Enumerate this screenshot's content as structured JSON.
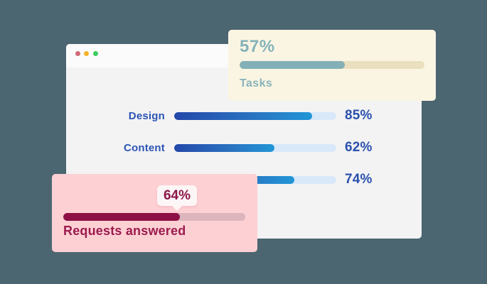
{
  "background_color": "#4c6671",
  "window": {
    "traffic_lights": [
      {
        "name": "close",
        "color": "#d16b76"
      },
      {
        "name": "minimize",
        "color": "#f6b42c"
      },
      {
        "name": "maximize",
        "color": "#3ecc5e"
      }
    ],
    "rows": [
      {
        "label": "Design",
        "value": "85%"
      },
      {
        "label": "Content",
        "value": "62%"
      },
      {
        "label": "",
        "value": "74%"
      }
    ],
    "bar_colors": {
      "fill_gradient_start": "#2348aa",
      "fill_gradient_end": "#2196d6",
      "track": "#d9e8f9",
      "label_text": "#2b55b5",
      "value_text": "#2b50ad"
    }
  },
  "tasks_card": {
    "percent_label": "57%",
    "label": "Tasks",
    "colors": {
      "background": "#faf5e3",
      "fill": "#82b0b6",
      "track": "#eadfbe",
      "text": "#85b3b9"
    }
  },
  "requests_card": {
    "tooltip_label": "64%",
    "label": "Requests answered",
    "colors": {
      "background": "#fdd0d4",
      "fill": "#8c0f45",
      "track": "#dcb5bd",
      "text": "#9c1b4e",
      "tooltip_background": "#fdf6f6",
      "tooltip_text": "#8b1748"
    }
  }
}
